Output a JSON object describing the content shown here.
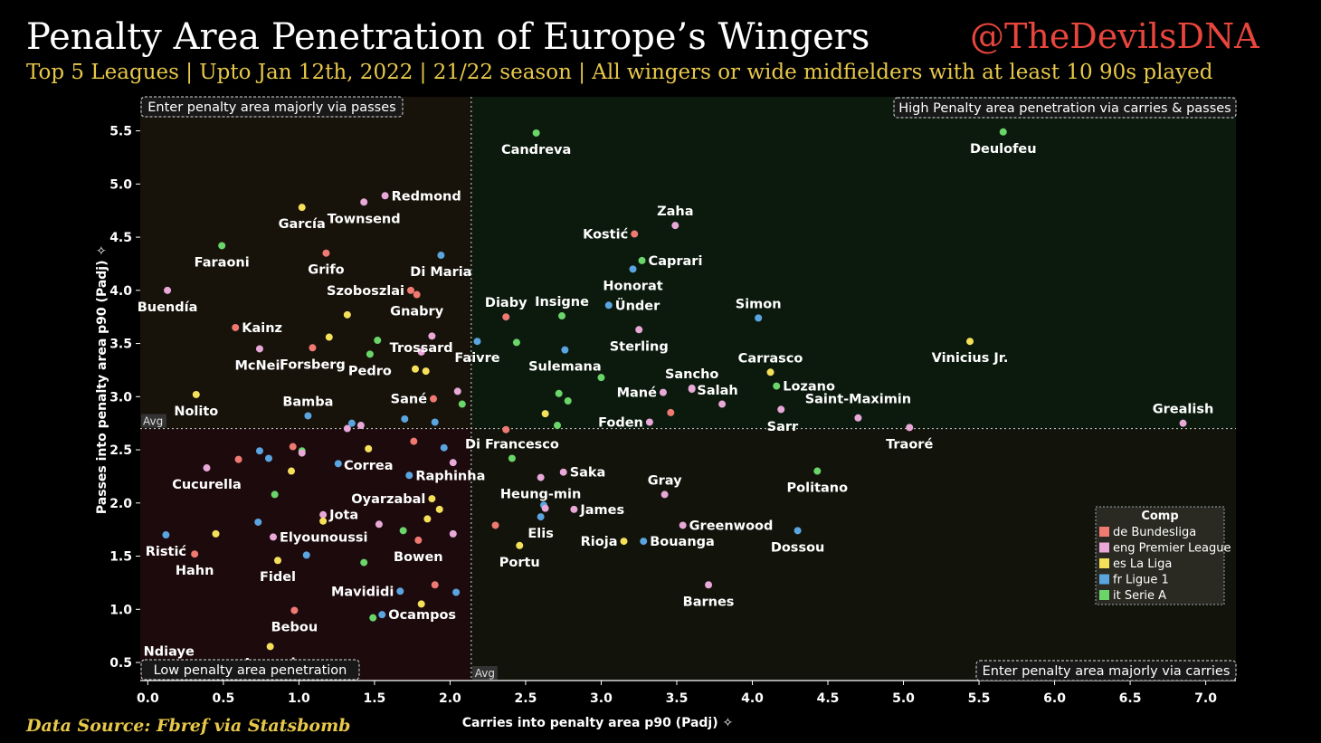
{
  "header": {
    "title": "Penalty Area Penetration of Europe’s Wingers",
    "subtitle": "Top 5 Leagues | Upto Jan 12th, 2022 | 21/22 season | All wingers or wide midfielders with at least 10 90s played",
    "handle": "@TheDevilsDNA",
    "source": "Data Source: Fbref via Statsbomb"
  },
  "chart_data": {
    "type": "scatter",
    "xlabel": "Carries into penalty area p90 (Padj)",
    "ylabel": "Passes into penalty area p90 (Padj)",
    "xlim": [
      -0.05,
      7.2
    ],
    "ylim": [
      0.33,
      5.82
    ],
    "xticks": [
      "0.0",
      "0.5",
      "1.0",
      "1.5",
      "2.0",
      "2.5",
      "3.0",
      "3.5",
      "4.0",
      "4.5",
      "5.0",
      "5.5",
      "6.0",
      "6.5",
      "7.0"
    ],
    "yticks": [
      "0.5",
      "1.0",
      "1.5",
      "2.0",
      "2.5",
      "3.0",
      "3.5",
      "4.0",
      "4.5",
      "5.0",
      "5.5"
    ],
    "avg_x": 2.14,
    "avg_y": 2.7,
    "avg_label": "Avg",
    "quadrants": {
      "top_left": "Enter penalty area majorly via passes",
      "top_right": "High Penalty area penetration via carries & passes",
      "bottom_left": "Low penalty area penetration",
      "bottom_right": "Enter penalty area majorly via carries"
    },
    "quadrant_colors": {
      "top_left": "#17130b",
      "top_right": "#0c1a0e",
      "bottom_left": "#1c0a0d",
      "bottom_right": "#12130a"
    },
    "legend": {
      "title": "Comp",
      "entries": [
        {
          "key": "de",
          "label": "de Bundesliga",
          "color": "#f07a72"
        },
        {
          "key": "eng",
          "label": "eng Premier League",
          "color": "#e8a8d8"
        },
        {
          "key": "es",
          "label": "es La Liga",
          "color": "#f5e05a"
        },
        {
          "key": "fr",
          "label": "fr Ligue 1",
          "color": "#5aa5e0"
        },
        {
          "key": "it",
          "label": "it Serie A",
          "color": "#6ad66a"
        }
      ]
    },
    "points": [
      {
        "name": "Candreva",
        "x": 2.57,
        "y": 5.48,
        "comp": "it",
        "pos": "b"
      },
      {
        "name": "Deulofeu",
        "x": 5.66,
        "y": 5.49,
        "comp": "it",
        "pos": "b"
      },
      {
        "name": "Redmond",
        "x": 1.57,
        "y": 4.89,
        "comp": "eng",
        "pos": "r"
      },
      {
        "name": "García",
        "x": 1.02,
        "y": 4.78,
        "comp": "es",
        "pos": "b"
      },
      {
        "name": "Townsend",
        "x": 1.43,
        "y": 4.83,
        "comp": "eng",
        "pos": "b"
      },
      {
        "name": "Zaha",
        "x": 3.49,
        "y": 4.61,
        "comp": "eng",
        "pos": "t"
      },
      {
        "name": "Kostić",
        "x": 3.22,
        "y": 4.53,
        "comp": "de",
        "pos": "l"
      },
      {
        "name": "Faraoni",
        "x": 0.49,
        "y": 4.42,
        "comp": "it",
        "pos": "b"
      },
      {
        "name": "Grifo",
        "x": 1.18,
        "y": 4.35,
        "comp": "de",
        "pos": "b"
      },
      {
        "name": "Caprari",
        "x": 3.27,
        "y": 4.28,
        "comp": "it",
        "pos": "r"
      },
      {
        "name": "Di Maria",
        "x": 1.94,
        "y": 4.33,
        "comp": "fr",
        "pos": "b"
      },
      {
        "name": "Honorat",
        "x": 3.21,
        "y": 4.2,
        "comp": "fr",
        "pos": "b"
      },
      {
        "name": "Szoboszlai",
        "x": 1.74,
        "y": 4.0,
        "comp": "de",
        "pos": "l"
      },
      {
        "name": "Buendía",
        "x": 0.13,
        "y": 4.0,
        "comp": "eng",
        "pos": "b"
      },
      {
        "name": "Gnabry",
        "x": 1.78,
        "y": 3.96,
        "comp": "de",
        "pos": "b"
      },
      {
        "name": "Ünder",
        "x": 3.05,
        "y": 3.86,
        "comp": "fr",
        "pos": "r"
      },
      {
        "name": "Diaby",
        "x": 2.37,
        "y": 3.75,
        "comp": "de",
        "pos": "t"
      },
      {
        "name": "Insigne",
        "x": 2.74,
        "y": 3.76,
        "comp": "it",
        "pos": "t"
      },
      {
        "name": "Simon",
        "x": 4.04,
        "y": 3.74,
        "comp": "fr",
        "pos": "t"
      },
      {
        "name": "_p1",
        "x": 1.32,
        "y": 3.77,
        "comp": "es",
        "pos": "n"
      },
      {
        "name": "Kainz",
        "x": 0.58,
        "y": 3.65,
        "comp": "de",
        "pos": "r"
      },
      {
        "name": "Sterling",
        "x": 3.25,
        "y": 3.63,
        "comp": "eng",
        "pos": "b"
      },
      {
        "name": "_p2",
        "x": 1.2,
        "y": 3.56,
        "comp": "es",
        "pos": "n"
      },
      {
        "name": "_p3",
        "x": 1.52,
        "y": 3.53,
        "comp": "it",
        "pos": "n"
      },
      {
        "name": "_p4",
        "x": 1.88,
        "y": 3.57,
        "comp": "eng",
        "pos": "n"
      },
      {
        "name": "Faivre",
        "x": 2.18,
        "y": 3.52,
        "comp": "fr",
        "pos": "b"
      },
      {
        "name": "_p5",
        "x": 2.44,
        "y": 3.51,
        "comp": "it",
        "pos": "n"
      },
      {
        "name": "Vinicius Jr.",
        "x": 5.44,
        "y": 3.52,
        "comp": "es",
        "pos": "b"
      },
      {
        "name": "McNeil",
        "x": 0.74,
        "y": 3.45,
        "comp": "eng",
        "pos": "b"
      },
      {
        "name": "Forsberg",
        "x": 1.09,
        "y": 3.46,
        "comp": "de",
        "pos": "b"
      },
      {
        "name": "Trossard",
        "x": 1.81,
        "y": 3.42,
        "comp": "eng",
        "pos": "n"
      },
      {
        "name": "Sulemana",
        "x": 2.76,
        "y": 3.44,
        "comp": "fr",
        "pos": "b"
      },
      {
        "name": "Pedro",
        "x": 1.47,
        "y": 3.4,
        "comp": "it",
        "pos": "b"
      },
      {
        "name": "_p6",
        "x": 1.77,
        "y": 3.26,
        "comp": "es",
        "pos": "n"
      },
      {
        "name": "_p7",
        "x": 1.84,
        "y": 3.24,
        "comp": "es",
        "pos": "n"
      },
      {
        "name": "Carrasco",
        "x": 4.12,
        "y": 3.23,
        "comp": "es",
        "pos": "t"
      },
      {
        "name": "Sancho",
        "x": 3.6,
        "y": 3.08,
        "comp": "eng",
        "pos": "t"
      },
      {
        "name": "_p8",
        "x": 3.0,
        "y": 3.18,
        "comp": "it",
        "pos": "n"
      },
      {
        "name": "Lozano",
        "x": 4.16,
        "y": 3.1,
        "comp": "it",
        "pos": "r"
      },
      {
        "name": "Salah",
        "x": 3.6,
        "y": 3.07,
        "comp": "eng",
        "pos": "n"
      },
      {
        "name": "Nolito",
        "x": 0.32,
        "y": 3.02,
        "comp": "es",
        "pos": "b"
      },
      {
        "name": "Mané",
        "x": 3.41,
        "y": 3.04,
        "comp": "eng",
        "pos": "l"
      },
      {
        "name": "Sané",
        "x": 1.89,
        "y": 2.98,
        "comp": "de",
        "pos": "l"
      },
      {
        "name": "_p9",
        "x": 2.05,
        "y": 3.05,
        "comp": "eng",
        "pos": "n"
      },
      {
        "name": "_p10",
        "x": 2.72,
        "y": 3.03,
        "comp": "it",
        "pos": "n"
      },
      {
        "name": "_p11",
        "x": 2.78,
        "y": 2.96,
        "comp": "it",
        "pos": "n"
      },
      {
        "name": "Bamba",
        "x": 1.06,
        "y": 2.82,
        "comp": "fr",
        "pos": "t"
      },
      {
        "name": "_p12",
        "x": 2.08,
        "y": 2.93,
        "comp": "it",
        "pos": "n"
      },
      {
        "name": "_p13",
        "x": 3.8,
        "y": 2.93,
        "comp": "eng",
        "pos": "n"
      },
      {
        "name": "Saint-Maximin",
        "x": 4.19,
        "y": 2.88,
        "comp": "eng",
        "pos": "n"
      },
      {
        "name": "_p14",
        "x": 3.46,
        "y": 2.85,
        "comp": "de",
        "pos": "n"
      },
      {
        "name": "_p15",
        "x": 2.63,
        "y": 2.84,
        "comp": "es",
        "pos": "n"
      },
      {
        "name": "Foden",
        "x": 3.32,
        "y": 2.76,
        "comp": "eng",
        "pos": "l"
      },
      {
        "name": "Sarr",
        "x": 4.7,
        "y": 2.8,
        "comp": "eng",
        "pos": "n"
      },
      {
        "name": "Grealish",
        "x": 6.85,
        "y": 2.75,
        "comp": "eng",
        "pos": "t"
      },
      {
        "name": "_p16",
        "x": 1.35,
        "y": 2.75,
        "comp": "fr",
        "pos": "n"
      },
      {
        "name": "_p17",
        "x": 1.32,
        "y": 2.7,
        "comp": "eng",
        "pos": "n"
      },
      {
        "name": "_p18",
        "x": 1.41,
        "y": 2.73,
        "comp": "eng",
        "pos": "n"
      },
      {
        "name": "_p19",
        "x": 1.7,
        "y": 2.79,
        "comp": "fr",
        "pos": "n"
      },
      {
        "name": "_p20",
        "x": 1.9,
        "y": 2.76,
        "comp": "fr",
        "pos": "n"
      },
      {
        "name": "_p21",
        "x": 2.37,
        "y": 2.69,
        "comp": "de",
        "pos": "n"
      },
      {
        "name": "_p22",
        "x": 2.71,
        "y": 2.73,
        "comp": "it",
        "pos": "n"
      },
      {
        "name": "Traoré",
        "x": 5.04,
        "y": 2.71,
        "comp": "eng",
        "pos": "b"
      },
      {
        "name": "_p23",
        "x": 1.76,
        "y": 2.58,
        "comp": "de",
        "pos": "n"
      },
      {
        "name": "_p24",
        "x": 0.96,
        "y": 2.53,
        "comp": "de",
        "pos": "n"
      },
      {
        "name": "_p25",
        "x": 1.02,
        "y": 2.49,
        "comp": "it",
        "pos": "n"
      },
      {
        "name": "_p26",
        "x": 1.02,
        "y": 2.47,
        "comp": "eng",
        "pos": "n"
      },
      {
        "name": "_p27",
        "x": 0.74,
        "y": 2.49,
        "comp": "fr",
        "pos": "n"
      },
      {
        "name": "_p28",
        "x": 1.96,
        "y": 2.52,
        "comp": "fr",
        "pos": "n"
      },
      {
        "name": "Di Francesco",
        "x": 2.41,
        "y": 2.42,
        "comp": "it",
        "pos": "t"
      },
      {
        "name": "_p29",
        "x": 0.6,
        "y": 2.41,
        "comp": "de",
        "pos": "n"
      },
      {
        "name": "_p30",
        "x": 0.8,
        "y": 2.42,
        "comp": "fr",
        "pos": "n"
      },
      {
        "name": "Correa",
        "x": 1.46,
        "y": 2.51,
        "comp": "es",
        "pos": "b"
      },
      {
        "name": "_p31",
        "x": 1.26,
        "y": 2.37,
        "comp": "fr",
        "pos": "n"
      },
      {
        "name": "_p32",
        "x": 2.02,
        "y": 2.38,
        "comp": "eng",
        "pos": "n"
      },
      {
        "name": "Cucurella",
        "x": 0.39,
        "y": 2.33,
        "comp": "eng",
        "pos": "b"
      },
      {
        "name": "_p33",
        "x": 0.95,
        "y": 2.3,
        "comp": "es",
        "pos": "n"
      },
      {
        "name": "Raphinha",
        "x": 1.73,
        "y": 2.26,
        "comp": "fr",
        "pos": "r"
      },
      {
        "name": "Saka",
        "x": 2.75,
        "y": 2.29,
        "comp": "eng",
        "pos": "r"
      },
      {
        "name": "Heung-min",
        "x": 2.6,
        "y": 2.24,
        "comp": "eng",
        "pos": "b"
      },
      {
        "name": "Politano",
        "x": 4.43,
        "y": 2.3,
        "comp": "it",
        "pos": "b"
      },
      {
        "name": "Gray",
        "x": 3.42,
        "y": 2.08,
        "comp": "eng",
        "pos": "t"
      },
      {
        "name": "_p34",
        "x": 0.84,
        "y": 2.08,
        "comp": "it",
        "pos": "n"
      },
      {
        "name": "Oyarzabal",
        "x": 1.88,
        "y": 2.04,
        "comp": "es",
        "pos": "l"
      },
      {
        "name": "_p35",
        "x": 2.62,
        "y": 1.98,
        "comp": "fr",
        "pos": "n"
      },
      {
        "name": "_p36",
        "x": 2.63,
        "y": 1.95,
        "comp": "eng",
        "pos": "n"
      },
      {
        "name": "_p37",
        "x": 1.93,
        "y": 1.94,
        "comp": "es",
        "pos": "n"
      },
      {
        "name": "Jota",
        "x": 1.16,
        "y": 1.89,
        "comp": "eng",
        "pos": "r"
      },
      {
        "name": "James",
        "x": 2.82,
        "y": 1.94,
        "comp": "eng",
        "pos": "r"
      },
      {
        "name": "_p38",
        "x": 1.16,
        "y": 1.83,
        "comp": "es",
        "pos": "n"
      },
      {
        "name": "_p39",
        "x": 1.85,
        "y": 1.85,
        "comp": "es",
        "pos": "n"
      },
      {
        "name": "_p40",
        "x": 0.73,
        "y": 1.82,
        "comp": "fr",
        "pos": "n"
      },
      {
        "name": "Elis",
        "x": 2.6,
        "y": 1.87,
        "comp": "fr",
        "pos": "b"
      },
      {
        "name": "_p41",
        "x": 1.53,
        "y": 1.8,
        "comp": "eng",
        "pos": "n"
      },
      {
        "name": "_p42",
        "x": 2.3,
        "y": 1.79,
        "comp": "de",
        "pos": "n"
      },
      {
        "name": "Greenwood",
        "x": 3.54,
        "y": 1.79,
        "comp": "eng",
        "pos": "r"
      },
      {
        "name": "_p43",
        "x": 1.69,
        "y": 1.74,
        "comp": "it",
        "pos": "n"
      },
      {
        "name": "Dossou",
        "x": 4.3,
        "y": 1.74,
        "comp": "fr",
        "pos": "b"
      },
      {
        "name": "_p44",
        "x": 0.45,
        "y": 1.71,
        "comp": "es",
        "pos": "n"
      },
      {
        "name": "Ristić",
        "x": 0.12,
        "y": 1.7,
        "comp": "fr",
        "pos": "b"
      },
      {
        "name": "Elyounoussi",
        "x": 0.83,
        "y": 1.68,
        "comp": "eng",
        "pos": "r"
      },
      {
        "name": "_p45",
        "x": 2.02,
        "y": 1.71,
        "comp": "eng",
        "pos": "n"
      },
      {
        "name": "Bowen",
        "x": 1.79,
        "y": 1.65,
        "comp": "de",
        "pos": "b"
      },
      {
        "name": "Rioja",
        "x": 3.15,
        "y": 1.64,
        "comp": "es",
        "pos": "l"
      },
      {
        "name": "Bouanga",
        "x": 3.28,
        "y": 1.64,
        "comp": "fr",
        "pos": "r"
      },
      {
        "name": "Portu",
        "x": 2.46,
        "y": 1.6,
        "comp": "es",
        "pos": "b"
      },
      {
        "name": "Hahn",
        "x": 0.31,
        "y": 1.52,
        "comp": "de",
        "pos": "b"
      },
      {
        "name": "_p46",
        "x": 1.05,
        "y": 1.51,
        "comp": "fr",
        "pos": "n"
      },
      {
        "name": "Fidel",
        "x": 0.86,
        "y": 1.46,
        "comp": "es",
        "pos": "b"
      },
      {
        "name": "_p47",
        "x": 1.43,
        "y": 1.44,
        "comp": "it",
        "pos": "n"
      },
      {
        "name": "Barnes",
        "x": 3.71,
        "y": 1.23,
        "comp": "eng",
        "pos": "b"
      },
      {
        "name": "_p48",
        "x": 1.9,
        "y": 1.23,
        "comp": "de",
        "pos": "n"
      },
      {
        "name": "Mavididi",
        "x": 1.67,
        "y": 1.17,
        "comp": "fr",
        "pos": "l"
      },
      {
        "name": "_p49",
        "x": 2.04,
        "y": 1.16,
        "comp": "fr",
        "pos": "n"
      },
      {
        "name": "_p50",
        "x": 1.81,
        "y": 1.05,
        "comp": "es",
        "pos": "n"
      },
      {
        "name": "Bebou",
        "x": 0.97,
        "y": 0.99,
        "comp": "de",
        "pos": "b"
      },
      {
        "name": "Ocampos",
        "x": 1.55,
        "y": 0.95,
        "comp": "fr",
        "pos": "r"
      },
      {
        "name": "_p51",
        "x": 1.49,
        "y": 0.92,
        "comp": "it",
        "pos": "n"
      },
      {
        "name": "Juanmi",
        "x": 0.81,
        "y": 0.65,
        "comp": "es",
        "pos": "b"
      },
      {
        "name": "Ndiaye",
        "x": 0.14,
        "y": 0.47,
        "comp": "es",
        "pos": "t"
      }
    ],
    "manual_labels": [
      {
        "name": "Trossard",
        "x": 1.81,
        "y": 3.42
      },
      {
        "name": "Salah",
        "x": 3.77,
        "y": 3.02
      },
      {
        "name": "Saint-Maximin",
        "x": 4.7,
        "y": 2.94
      },
      {
        "name": "Sarr",
        "x": 4.2,
        "y": 2.68
      }
    ]
  }
}
